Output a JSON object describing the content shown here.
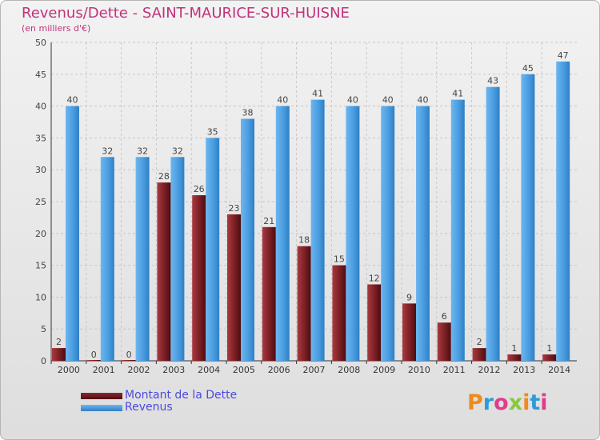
{
  "title": "Revenus/Dette - SAINT-MAURICE-SUR-HUISNE",
  "subtitle": "(en milliers d'€)",
  "logo": "Proxiti",
  "colors": {
    "debt": "#7a1f24",
    "revenue": "#4a9de0",
    "title": "#c0337a",
    "legend_text": "#4a4ae0"
  },
  "chart_data": {
    "type": "bar",
    "categories": [
      "2000",
      "2001",
      "2002",
      "2003",
      "2004",
      "2005",
      "2006",
      "2007",
      "2008",
      "2009",
      "2010",
      "2011",
      "2012",
      "2013",
      "2014"
    ],
    "series": [
      {
        "name": "Montant de la Dette",
        "values": [
          2,
          0,
          0,
          28,
          26,
          23,
          21,
          18,
          15,
          12,
          9,
          6,
          2,
          1,
          1
        ]
      },
      {
        "name": "Revenus",
        "values": [
          40,
          32,
          32,
          32,
          35,
          38,
          40,
          41,
          40,
          40,
          40,
          41,
          43,
          45,
          47
        ]
      }
    ],
    "ylim": [
      0,
      50
    ],
    "yticks": [
      0,
      5,
      10,
      15,
      20,
      25,
      30,
      35,
      40,
      45,
      50
    ],
    "grid": true,
    "legend": "bottom-left"
  }
}
